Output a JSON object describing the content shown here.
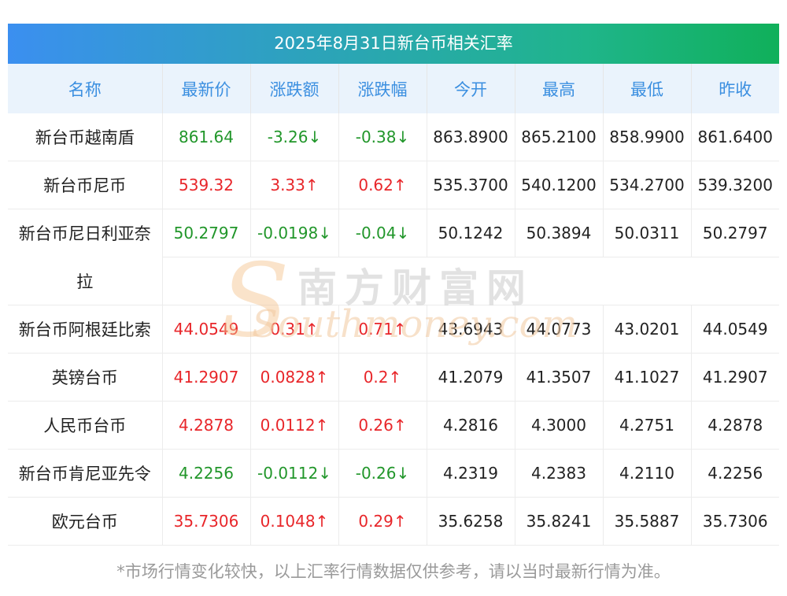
{
  "title": "2025年8月31日新台币相关汇率",
  "columns": [
    "名称",
    "最新价",
    "涨跌额",
    "涨跌幅",
    "今开",
    "最高",
    "最低",
    "昨收"
  ],
  "rows": [
    {
      "name": "新台币越南盾",
      "price": "861.64",
      "chg": "-3.26↓",
      "pct": "-0.38↓",
      "open": "863.8900",
      "high": "865.2100",
      "low": "858.9900",
      "prev": "861.6400",
      "dir": "down"
    },
    {
      "name": "新台币尼币",
      "price": "539.32",
      "chg": "3.33↑",
      "pct": "0.62↑",
      "open": "535.3700",
      "high": "540.1200",
      "low": "534.2700",
      "prev": "539.3200",
      "dir": "up"
    },
    {
      "name": "新台币尼日利亚奈",
      "name2": "拉",
      "price": "50.2797",
      "chg": "-0.0198↓",
      "pct": "-0.04↓",
      "open": "50.1242",
      "high": "50.3894",
      "low": "50.0311",
      "prev": "50.2797",
      "dir": "down"
    },
    {
      "name": "新台币阿根廷比索",
      "price": "44.0549",
      "chg": "0.31↑",
      "pct": "0.71↑",
      "open": "43.6943",
      "high": "44.0773",
      "low": "43.0201",
      "prev": "44.0549",
      "dir": "up"
    },
    {
      "name": "英镑台币",
      "price": "41.2907",
      "chg": "0.0828↑",
      "pct": "0.2↑",
      "open": "41.2079",
      "high": "41.3507",
      "low": "41.1027",
      "prev": "41.2907",
      "dir": "up"
    },
    {
      "name": "人民币台币",
      "price": "4.2878",
      "chg": "0.0112↑",
      "pct": "0.26↑",
      "open": "4.2816",
      "high": "4.3000",
      "low": "4.2751",
      "prev": "4.2878",
      "dir": "up"
    },
    {
      "name": "新台币肯尼亚先令",
      "price": "4.2256",
      "chg": "-0.0112↓",
      "pct": "-0.26↓",
      "open": "4.2319",
      "high": "4.2383",
      "low": "4.2110",
      "prev": "4.2256",
      "dir": "down"
    },
    {
      "name": "欧元台币",
      "price": "35.7306",
      "chg": "0.1048↑",
      "pct": "0.29↑",
      "open": "35.6258",
      "high": "35.8241",
      "low": "35.5887",
      "prev": "35.7306",
      "dir": "up"
    }
  ],
  "watermark": {
    "cn": "南方财富网",
    "en": "Southmoney.com",
    "s": "S"
  },
  "note": "*市场行情变化较快，以上汇率行情数据仅供参考，请以当时最新行情为准。",
  "colors": {
    "up": "#e8262a",
    "down": "#21962a",
    "header_text": "#3b8fe0"
  }
}
